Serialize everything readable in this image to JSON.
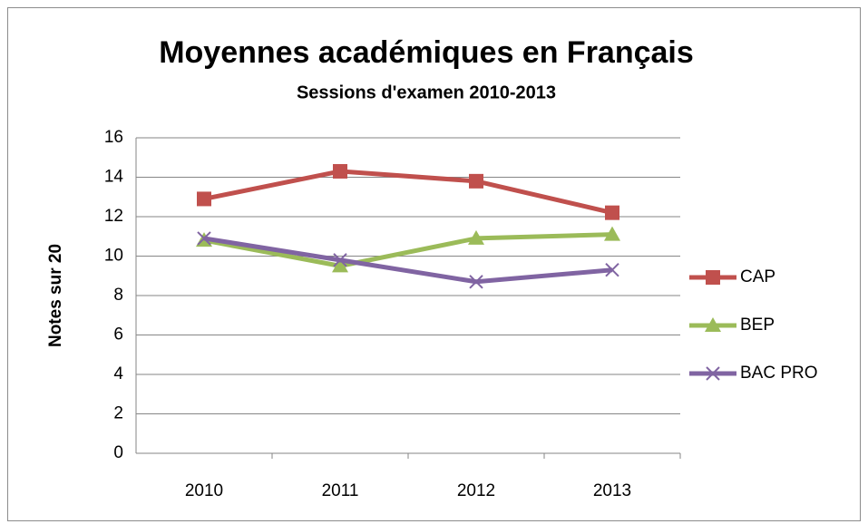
{
  "chart_data": {
    "type": "line",
    "title": "Moyennes académiques en Français",
    "subtitle": "Sessions d'examen 2010-2013",
    "y_label": "Notes sur 20",
    "categories": [
      "2010",
      "2011",
      "2012",
      "2013"
    ],
    "series": [
      {
        "name": "CAP",
        "color": "#c0504d",
        "marker": "square",
        "values": [
          12.9,
          14.3,
          13.8,
          12.2
        ]
      },
      {
        "name": "BEP",
        "color": "#9bbb59",
        "marker": "triangle",
        "values": [
          10.8,
          9.5,
          10.9,
          11.1
        ]
      },
      {
        "name": "BAC PRO",
        "color": "#8064a2",
        "marker": "x",
        "values": [
          10.9,
          9.8,
          8.7,
          9.3
        ]
      }
    ],
    "ylim": [
      0,
      16
    ],
    "yticks": [
      0,
      2,
      4,
      6,
      8,
      10,
      12,
      14,
      16
    ],
    "grid": true,
    "legend": "right"
  }
}
